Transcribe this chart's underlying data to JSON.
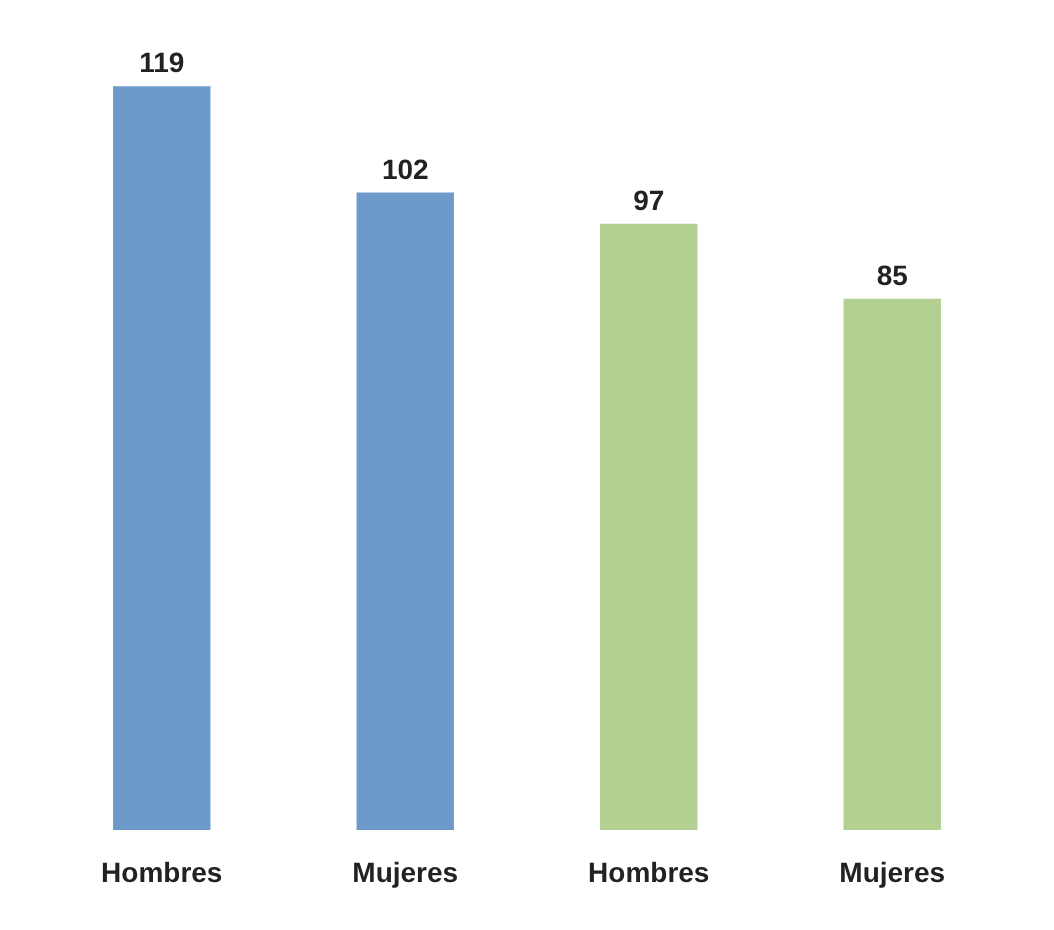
{
  "chart_data": {
    "type": "bar",
    "categories": [
      "Hombres",
      "Mujeres",
      "Hombres",
      "Mujeres"
    ],
    "values": [
      119,
      102,
      97,
      85
    ],
    "colors": [
      "#6e9acb",
      "#6e9acb",
      "#b3cf92",
      "#b3cf92"
    ],
    "data_labels": true
  }
}
